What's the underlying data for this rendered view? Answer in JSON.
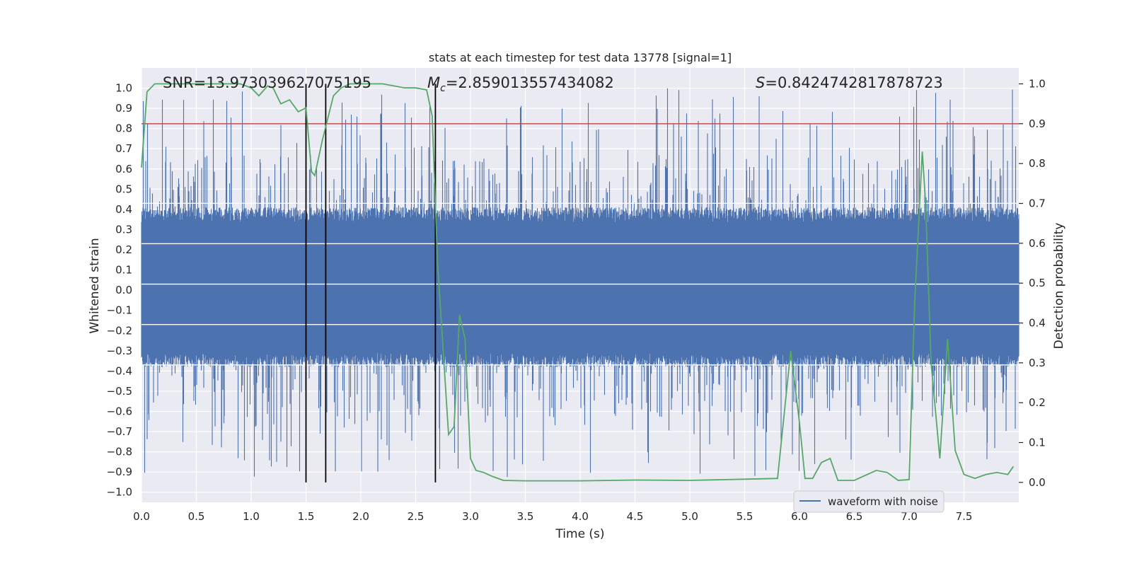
{
  "colors": {
    "plot_bg": "#eaeaf2",
    "grid": "#ffffff",
    "waveform": "#4c72b0",
    "probability": "#55a868",
    "threshold": "#c44e52",
    "marker_lines": "#000000",
    "text": "#262626"
  },
  "chart_data": {
    "type": "line",
    "title": "stats at each timestep for test data 13778 [signal=1]",
    "xlabel": "Time (s)",
    "ylabel_left": "Whitened strain",
    "ylabel_right": "Detection probability",
    "xlim": [
      0,
      8
    ],
    "ylim_left": [
      -1.05,
      1.1
    ],
    "ylim_right": [
      -0.05,
      1.04
    ],
    "x_ticks": [
      "0.0",
      "0.5",
      "1.0",
      "1.5",
      "2.0",
      "2.5",
      "3.0",
      "3.5",
      "4.0",
      "4.5",
      "5.0",
      "5.5",
      "6.0",
      "6.5",
      "7.0",
      "7.5"
    ],
    "x_tick_values": [
      0,
      0.5,
      1,
      1.5,
      2,
      2.5,
      3,
      3.5,
      4,
      4.5,
      5,
      5.5,
      6,
      6.5,
      7,
      7.5
    ],
    "left_ticks": [
      "1.0",
      "0.9",
      "0.8",
      "0.7",
      "0.6",
      "0.5",
      "0.4",
      "0.3",
      "0.2",
      "0.1",
      "0.0",
      "−0.1",
      "−0.2",
      "−0.3",
      "−0.4",
      "−0.5",
      "−0.6",
      "−0.7",
      "−0.8",
      "−0.9",
      "−1.0"
    ],
    "left_tick_values": [
      1.0,
      0.9,
      0.8,
      0.7,
      0.6,
      0.5,
      0.4,
      0.3,
      0.2,
      0.1,
      0.0,
      -0.1,
      -0.2,
      -0.3,
      -0.4,
      -0.5,
      -0.6,
      -0.7,
      -0.8,
      -0.9,
      -1.0
    ],
    "right_ticks": [
      "1.0",
      "0.9",
      "0.8",
      "0.7",
      "0.6",
      "0.5",
      "0.4",
      "0.3",
      "0.2",
      "0.1",
      "0.0"
    ],
    "right_tick_values": [
      1.0,
      0.9,
      0.8,
      0.7,
      0.6,
      0.5,
      0.4,
      0.3,
      0.2,
      0.1,
      0.0
    ],
    "annotations": {
      "snr": "SNR=13.973039627075195",
      "mc_symbol": "M",
      "mc_sub": "c",
      "mc_value": "=2.859013557434082",
      "s_symbol": "S",
      "s_value": "=0.8424742817878723"
    },
    "legend": {
      "label": "waveform with noise",
      "position": "lower-right"
    },
    "threshold_probability": 0.9,
    "vertical_markers": [
      1.5,
      1.68,
      2.68
    ],
    "waveform": {
      "name": "waveform with noise",
      "duration_s": 8,
      "dense_band": [
        -0.38,
        0.41
      ],
      "peak_range": [
        -0.94,
        1.0
      ]
    },
    "probability": {
      "name": "detection probability",
      "t": [
        0,
        0.05,
        0.12,
        0.2,
        0.3,
        0.5,
        0.7,
        0.9,
        1.0,
        1.07,
        1.15,
        1.2,
        1.27,
        1.35,
        1.43,
        1.5,
        1.55,
        1.58,
        1.65,
        1.75,
        1.82,
        1.9,
        2.0,
        2.2,
        2.4,
        2.5,
        2.6,
        2.65,
        2.7,
        2.8,
        2.85,
        2.9,
        2.95,
        3.0,
        3.05,
        3.12,
        3.2,
        3.3,
        3.5,
        4.0,
        4.5,
        5.0,
        5.5,
        5.8,
        5.92,
        6.0,
        6.05,
        6.12,
        6.2,
        6.28,
        6.35,
        6.5,
        6.7,
        6.8,
        6.9,
        7.0,
        7.05,
        7.12,
        7.15,
        7.2,
        7.28,
        7.35,
        7.42,
        7.5,
        7.6,
        7.7,
        7.8,
        7.9,
        7.95
      ],
      "p": [
        0.79,
        0.98,
        1.0,
        1.0,
        1.0,
        1.0,
        1.0,
        1.0,
        0.99,
        0.97,
        0.995,
        0.99,
        0.95,
        0.96,
        0.93,
        0.94,
        0.78,
        0.77,
        0.86,
        0.97,
        0.99,
        1.0,
        1.0,
        1.0,
        0.99,
        0.99,
        0.985,
        0.92,
        0.55,
        0.12,
        0.14,
        0.42,
        0.36,
        0.06,
        0.03,
        0.025,
        0.015,
        0.005,
        0.004,
        0.004,
        0.006,
        0.005,
        0.008,
        0.01,
        0.33,
        0.15,
        0.01,
        0.01,
        0.05,
        0.06,
        0.005,
        0.005,
        0.03,
        0.025,
        0.005,
        0.007,
        0.45,
        0.83,
        0.7,
        0.3,
        0.06,
        0.36,
        0.08,
        0.02,
        0.01,
        0.02,
        0.025,
        0.02,
        0.04
      ]
    }
  }
}
